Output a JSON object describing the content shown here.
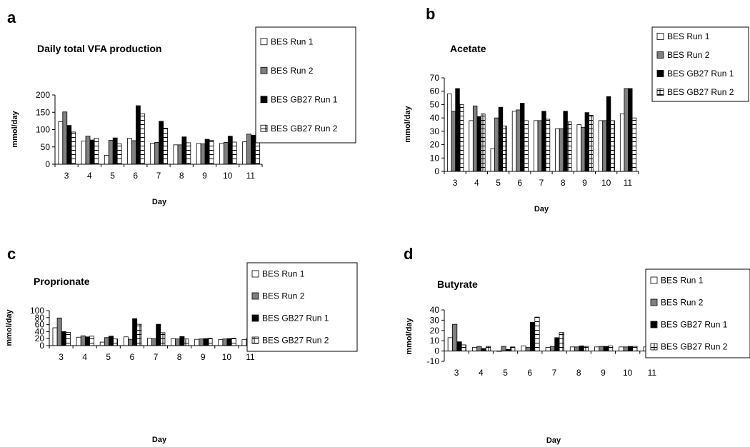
{
  "patterns": {
    "BES Run 1": "white",
    "BES Run 2": "gray",
    "BES GB27 Run 1": "black",
    "BES GB27 Run 2": "brick"
  },
  "chart_data": [
    {
      "panel": "a",
      "type": "bar",
      "title": "Daily total VFA production",
      "xlabel": "Day",
      "ylabel": "mmol/day",
      "categories": [
        "3",
        "4",
        "5",
        "6",
        "7",
        "8",
        "9",
        "10",
        "11"
      ],
      "yticks": [
        "0",
        "50",
        "100",
        "150",
        "200"
      ],
      "ylim": [
        0,
        200
      ],
      "grid": false,
      "legend_position": "top-right",
      "series": [
        {
          "name": "BES Run 1",
          "values": [
            123,
            67,
            26,
            75,
            61,
            56,
            60,
            60,
            65
          ]
        },
        {
          "name": "BES Run 2",
          "values": [
            151,
            81,
            69,
            68,
            63,
            56,
            59,
            63,
            87
          ]
        },
        {
          "name": "BES GB27 Run 1",
          "values": [
            112,
            70,
            76,
            169,
            124,
            79,
            72,
            81,
            84
          ]
        },
        {
          "name": "BES GB27 Run 2",
          "values": [
            93,
            75,
            59,
            146,
            104,
            62,
            69,
            64,
            67
          ]
        }
      ]
    },
    {
      "panel": "b",
      "type": "bar",
      "title": "Acetate",
      "xlabel": "Day",
      "ylabel": "mmol/day",
      "categories": [
        "3",
        "4",
        "5",
        "6",
        "7",
        "8",
        "9",
        "10",
        "11"
      ],
      "yticks": [
        "0",
        "10",
        "20",
        "30",
        "40",
        "50",
        "60",
        "70"
      ],
      "ylim": [
        0,
        70
      ],
      "grid": false,
      "legend_position": "top-right",
      "series": [
        {
          "name": "BES Run 1",
          "values": [
            58,
            38,
            17,
            45,
            38,
            32,
            35,
            38,
            43
          ]
        },
        {
          "name": "BES Run 2",
          "values": [
            45,
            49,
            40,
            46,
            38,
            32,
            33,
            38,
            62
          ]
        },
        {
          "name": "BES GB27 Run 1",
          "values": [
            62,
            41,
            48,
            51,
            45,
            45,
            44,
            56,
            62
          ]
        },
        {
          "name": "BES GB27 Run 2",
          "values": [
            50,
            43,
            34,
            38,
            39,
            37,
            42,
            38,
            40
          ]
        }
      ]
    },
    {
      "panel": "c",
      "type": "bar",
      "title": "Proprionate",
      "xlabel": "Day",
      "ylabel": "mmol/day",
      "categories": [
        "3",
        "4",
        "5",
        "6",
        "7",
        "8",
        "9",
        "10",
        "11"
      ],
      "yticks": [
        "0",
        "20",
        "40",
        "60",
        "80",
        "100"
      ],
      "ylim": [
        0,
        100
      ],
      "grid": false,
      "legend_position": "top-right",
      "series": [
        {
          "name": "BES Run 1",
          "values": [
            51,
            24,
            10,
            25,
            21,
            20,
            18,
            17,
            17
          ]
        },
        {
          "name": "BES Run 2",
          "values": [
            79,
            28,
            23,
            18,
            20,
            19,
            19,
            19,
            20
          ]
        },
        {
          "name": "BES GB27 Run 1",
          "values": [
            40,
            25,
            27,
            77,
            61,
            26,
            20,
            20,
            17
          ]
        },
        {
          "name": "BES GB27 Run 2",
          "values": [
            38,
            27,
            19,
            61,
            37,
            19,
            21,
            21,
            21
          ]
        }
      ]
    },
    {
      "panel": "d",
      "type": "bar",
      "title": "Butyrate",
      "xlabel": "Day",
      "ylabel": "mmol/day",
      "categories": [
        "3",
        "4",
        "5",
        "6",
        "7",
        "8",
        "9",
        "10",
        "11"
      ],
      "yticks": [
        "-10",
        "0",
        "10",
        "20",
        "30",
        "40"
      ],
      "ylim": [
        -10,
        40
      ],
      "grid": false,
      "legend_position": "top-right",
      "series": [
        {
          "name": "BES Run 1",
          "values": [
            13,
            3.5,
            0,
            5,
            3.5,
            4,
            4,
            4,
            4
          ]
        },
        {
          "name": "BES Run 2",
          "values": [
            26,
            4.5,
            4.5,
            3.5,
            4.5,
            4,
            4.5,
            4,
            4.5
          ]
        },
        {
          "name": "BES GB27 Run 1",
          "values": [
            9,
            2.5,
            1.5,
            28,
            13,
            5,
            4.5,
            4.5,
            4
          ]
        },
        {
          "name": "BES GB27 Run 2",
          "values": [
            6,
            4.5,
            4,
            33,
            18,
            4.5,
            5,
            4.5,
            4.5
          ]
        }
      ]
    }
  ]
}
